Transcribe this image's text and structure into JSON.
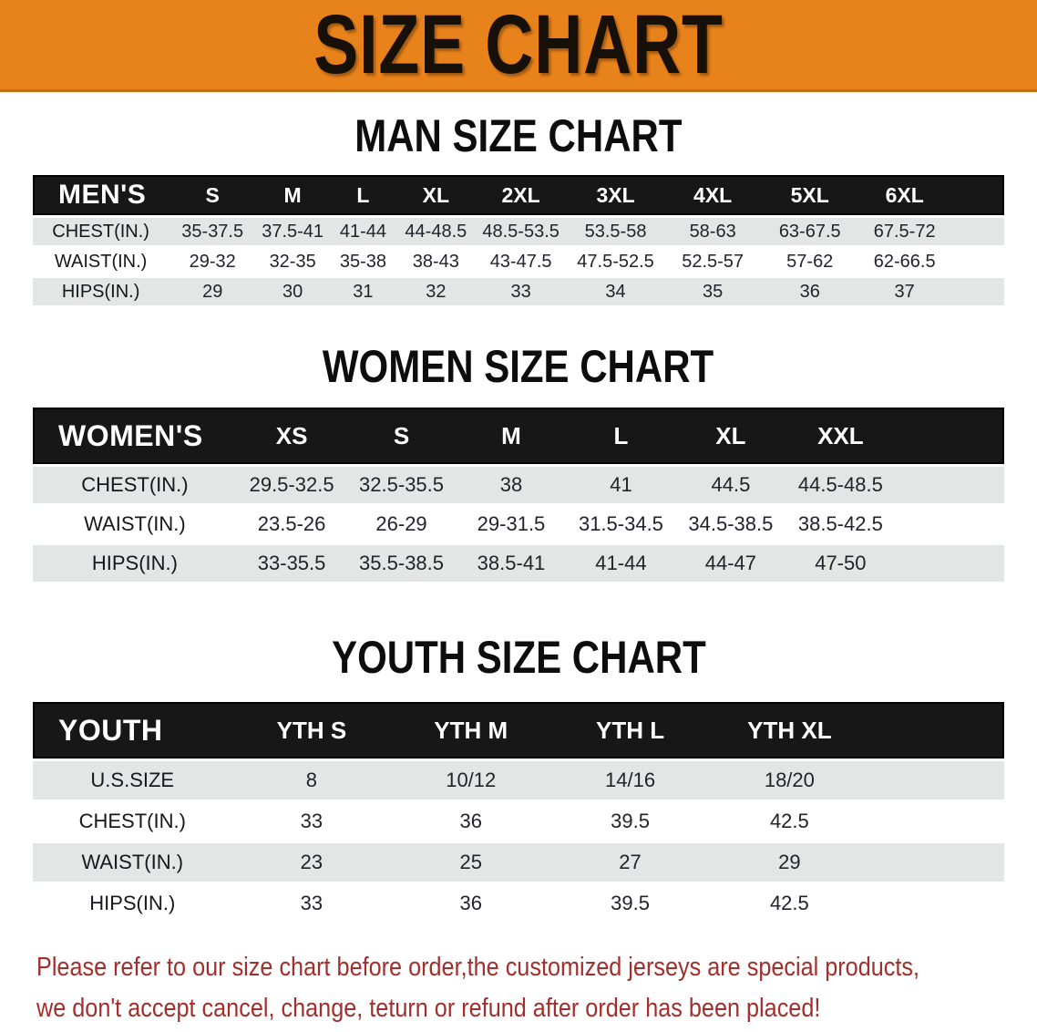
{
  "banner": {
    "title": "SIZE CHART"
  },
  "sections": {
    "men_heading": "MAN SIZE CHART",
    "women_heading": "WOMEN SIZE CHART",
    "youth_heading": "YOUTH SIZE CHART"
  },
  "tables": {
    "men": {
      "columns": [
        "MEN'S",
        "S",
        "M",
        "L",
        "XL",
        "2XL",
        "3XL",
        "4XL",
        "5XL",
        "6XL"
      ],
      "rows": [
        {
          "label": "CHEST(IN.)",
          "values": [
            "35-37.5",
            "37.5-41",
            "41-44",
            "44-48.5",
            "48.5-53.5",
            "53.5-58",
            "58-63",
            "63-67.5",
            "67.5-72"
          ]
        },
        {
          "label": "WAIST(IN.)",
          "values": [
            "29-32",
            "32-35",
            "35-38",
            "38-43",
            "43-47.5",
            "47.5-52.5",
            "52.5-57",
            "57-62",
            "62-66.5"
          ]
        },
        {
          "label": "HIPS(IN.)",
          "values": [
            "29",
            "30",
            "31",
            "32",
            "33",
            "34",
            "35",
            "36",
            "37"
          ]
        }
      ]
    },
    "women": {
      "columns": [
        "WOMEN'S",
        "XS",
        "S",
        "M",
        "L",
        "XL",
        "XXL"
      ],
      "rows": [
        {
          "label": "CHEST(IN.)",
          "values": [
            "29.5-32.5",
            "32.5-35.5",
            "38",
            "41",
            "44.5",
            "44.5-48.5"
          ]
        },
        {
          "label": "WAIST(IN.)",
          "values": [
            "23.5-26",
            "26-29",
            "29-31.5",
            "31.5-34.5",
            "34.5-38.5",
            "38.5-42.5"
          ]
        },
        {
          "label": "HIPS(IN.)",
          "values": [
            "33-35.5",
            "35.5-38.5",
            "38.5-41",
            "41-44",
            "44-47",
            "47-50"
          ]
        }
      ]
    },
    "youth": {
      "columns": [
        "YOUTH",
        "YTH S",
        "YTH M",
        "YTH L",
        "YTH XL"
      ],
      "rows": [
        {
          "label": "U.S.SIZE",
          "values": [
            "8",
            "10/12",
            "14/16",
            "18/20"
          ]
        },
        {
          "label": "CHEST(IN.)",
          "values": [
            "33",
            "36",
            "39.5",
            "42.5"
          ]
        },
        {
          "label": "WAIST(IN.)",
          "values": [
            "23",
            "25",
            "27",
            "29"
          ]
        },
        {
          "label": "HIPS(IN.)",
          "values": [
            "33",
            "36",
            "39.5",
            "42.5"
          ]
        }
      ]
    }
  },
  "disclaimer": {
    "line1": "Please refer to our size chart before order,the customized jerseys are special products,",
    "line2": "we don't accept cancel, change, teturn or refund after order has been placed!"
  },
  "colors": {
    "banner_orange": "#E8831C",
    "header_black": "#171717",
    "stripe_gray": "#E4E5E5",
    "disclaimer_red": "#A42E2C",
    "text_dark": "#23232B"
  }
}
